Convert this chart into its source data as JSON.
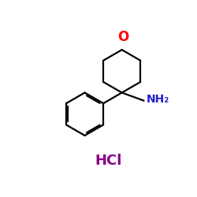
{
  "background_color": "#ffffff",
  "bond_color": "#000000",
  "oxygen_color": "#ff0000",
  "nh2_color": "#2222cc",
  "hcl_color": "#880088",
  "oxygen_label": "O",
  "nh2_label": "NH₂",
  "hcl_label": "HCl",
  "figsize": [
    2.5,
    2.5
  ],
  "dpi": 100,
  "lw": 1.6
}
